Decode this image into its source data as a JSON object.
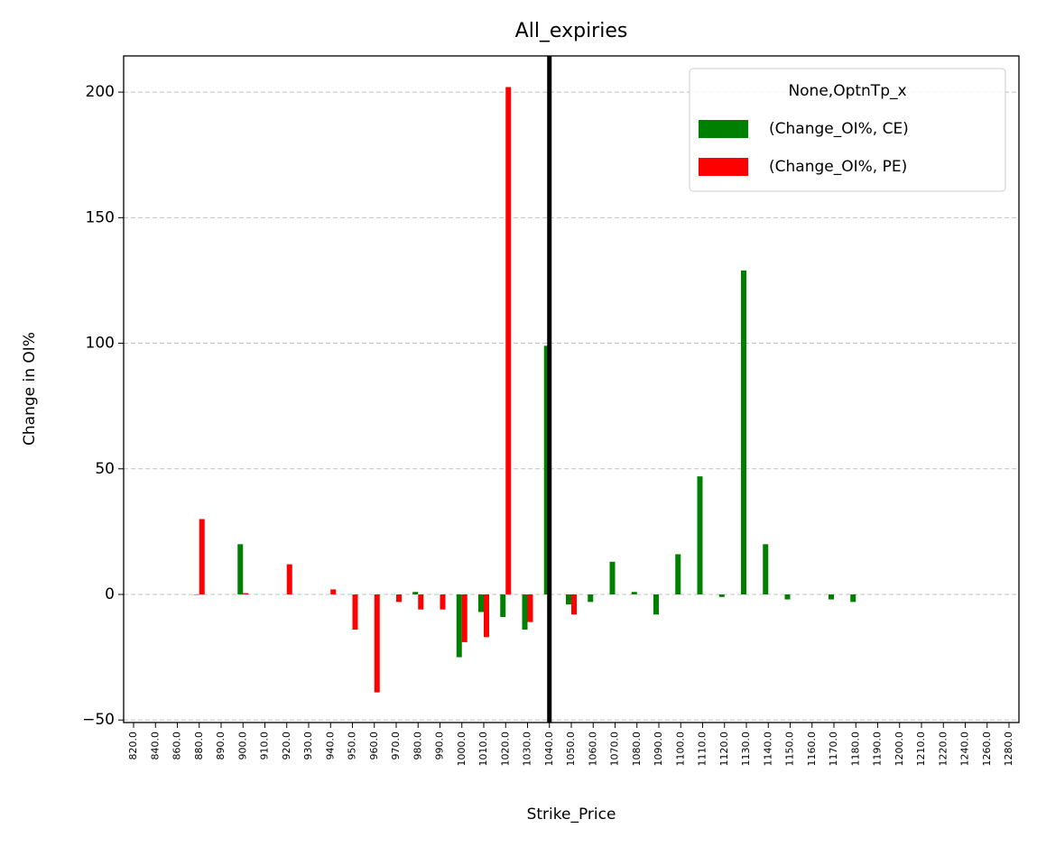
{
  "chart_data": {
    "type": "bar",
    "title": "All_expiries",
    "x_label": "Strike_Price",
    "y_label": "Change in OI%",
    "categories": [
      "820.0",
      "840.0",
      "860.0",
      "880.0",
      "890.0",
      "900.0",
      "910.0",
      "920.0",
      "930.0",
      "940.0",
      "950.0",
      "960.0",
      "970.0",
      "980.0",
      "990.0",
      "1000.0",
      "1010.0",
      "1020.0",
      "1030.0",
      "1040.0",
      "1050.0",
      "1060.0",
      "1070.0",
      "1080.0",
      "1090.0",
      "1100.0",
      "1110.0",
      "1120.0",
      "1130.0",
      "1140.0",
      "1150.0",
      "1160.0",
      "1170.0",
      "1180.0",
      "1190.0",
      "1200.0",
      "1210.0",
      "1220.0",
      "1240.0",
      "1260.0",
      "1280.0"
    ],
    "series": [
      {
        "name": "(Change_OI%, CE)",
        "color": "#008000",
        "values": [
          null,
          null,
          null,
          0,
          null,
          20,
          null,
          null,
          null,
          null,
          null,
          null,
          null,
          1,
          null,
          -25,
          -7,
          -9,
          -14,
          99,
          -4,
          -3,
          13,
          1,
          -8,
          16,
          47,
          -1,
          129,
          20,
          -2,
          null,
          -2,
          -3,
          null,
          null,
          null,
          null,
          null,
          null,
          null
        ]
      },
      {
        "name": "(Change_OI%, PE)",
        "color": "#ff0000",
        "values": [
          null,
          null,
          null,
          30,
          null,
          0.5,
          null,
          12,
          null,
          2,
          -14,
          -39,
          -3,
          -6,
          -6,
          -19,
          -17,
          202,
          -11,
          null,
          -8,
          null,
          null,
          null,
          null,
          null,
          null,
          null,
          null,
          null,
          null,
          null,
          null,
          null,
          null,
          null,
          null,
          null,
          null,
          null,
          null
        ]
      }
    ],
    "legend_title": "None,OptnTp_x",
    "legend_position": "upper right",
    "vline": {
      "x": 1040,
      "color": "#000000"
    },
    "ylim": [
      -51,
      214.4
    ],
    "yticks": [
      {
        "value": -50,
        "label": "−50"
      },
      0,
      50,
      100,
      150,
      200
    ],
    "grid": true
  }
}
